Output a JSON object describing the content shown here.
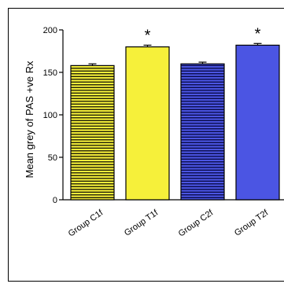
{
  "chart_data": {
    "type": "bar",
    "title": "",
    "xlabel": "",
    "ylabel": "Mean grey of PAS +ve Rx",
    "ylim": [
      0,
      200
    ],
    "yticks": [
      0,
      50,
      100,
      150,
      200
    ],
    "categories": [
      "Group C1f",
      "Group T1f",
      "Group C2f",
      "Group T2f"
    ],
    "values": [
      158,
      180,
      160,
      182
    ],
    "errors": [
      2,
      2,
      2,
      2
    ],
    "significance": [
      "",
      "*",
      "",
      "*"
    ],
    "bar_fill": [
      "#f6f03a",
      "#f6f03a",
      "#4b55e3",
      "#4b55e3"
    ],
    "bar_hatched": [
      true,
      false,
      true,
      false
    ],
    "hatch_color": [
      "#000000",
      "#000000",
      "#000033",
      "#000000"
    ],
    "grid": false,
    "legend": "none"
  }
}
